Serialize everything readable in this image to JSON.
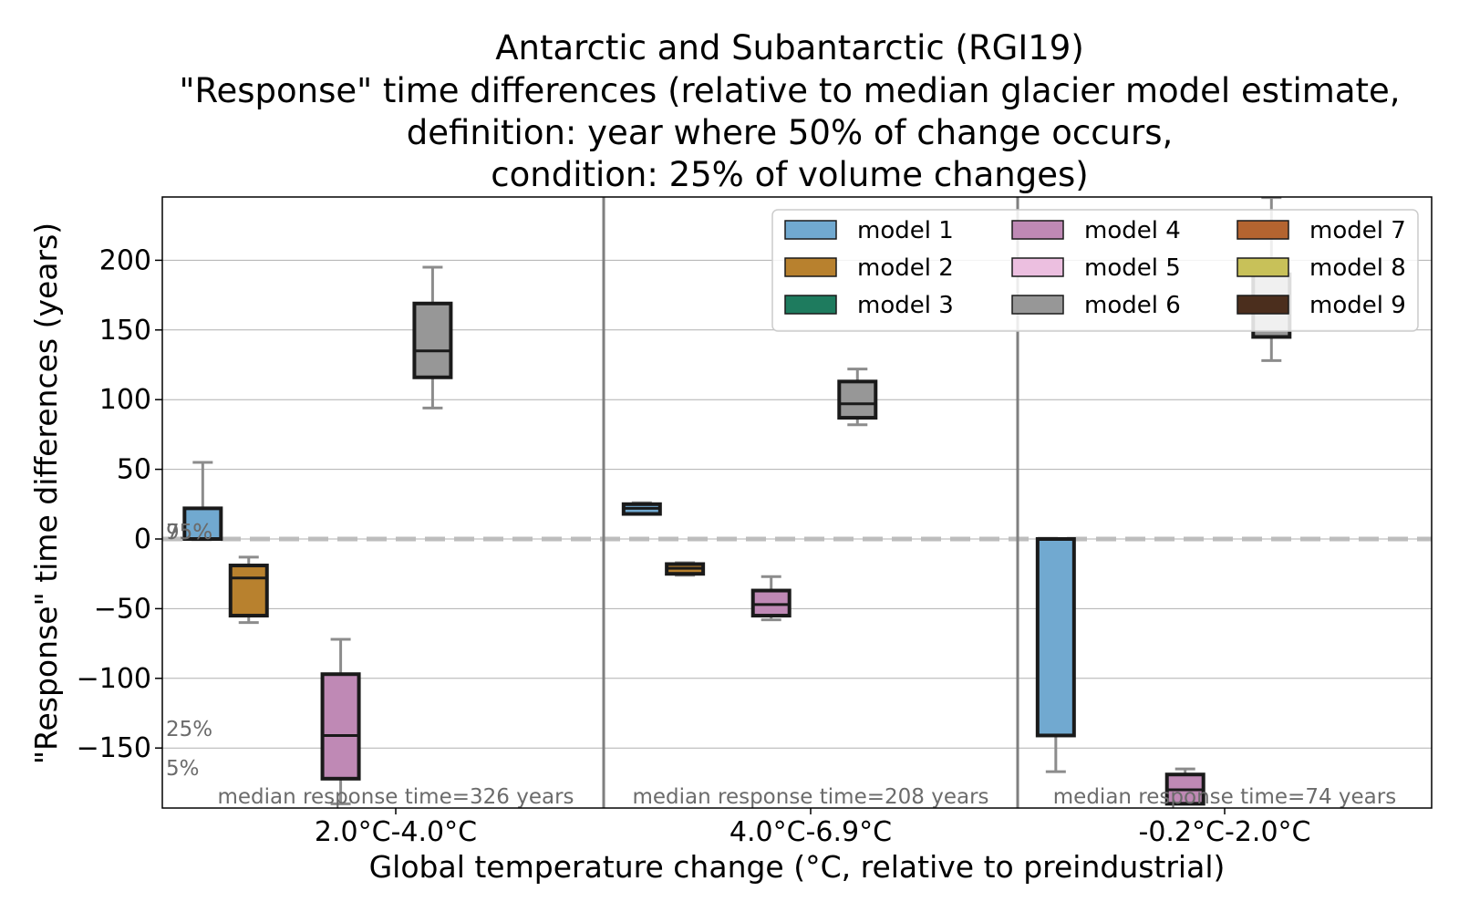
{
  "chart_data": {
    "type": "box",
    "title_lines": [
      "Antarctic and Subantarctic (RGI19)",
      "\"Response\" time differences (relative to median glacier model estimate,",
      "definition: year where 50% of change occurs,",
      "condition: 25% of volume changes)"
    ],
    "xlabel": "Global temperature change (°C, relative to preindustrial)",
    "ylabel": "\"Response\" time differences (years)",
    "ylim": [
      -192,
      245
    ],
    "yticks": [
      200,
      150,
      100,
      50,
      0,
      -50,
      -100,
      -150
    ],
    "ytick_labels": [
      "200",
      "150",
      "100",
      "50",
      "0",
      "−50",
      "−100",
      "−150"
    ],
    "grid": true,
    "legend_position": "top-right",
    "zero_line": "dashed grey",
    "categories": [
      "2.0°C-4.0°C",
      "4.0°C-6.9°C",
      "-0.2°C-2.0°C"
    ],
    "median_notes": [
      "median response time=326 years",
      "median response time=208 years",
      "median response time=74 years"
    ],
    "percentile_annotations": {
      "p95": "95%",
      "p75": "75%",
      "p25": "25%",
      "p5": "5%"
    },
    "series": [
      {
        "name": "model 1",
        "color": "#71a9d0",
        "boxes": [
          {
            "category": 0,
            "whislo": 0,
            "q1": 0,
            "med": 0,
            "q3": 22,
            "whishi": 55
          },
          {
            "category": 1,
            "whislo": 18,
            "q1": 18,
            "med": 22,
            "q3": 25,
            "whishi": 26
          },
          {
            "category": 2,
            "whislo": -167,
            "q1": -141,
            "med": 0,
            "q3": 0,
            "whishi": 0
          }
        ]
      },
      {
        "name": "model 2",
        "color": "#b8812e",
        "boxes": [
          {
            "category": 0,
            "whislo": -60,
            "q1": -55,
            "med": -28,
            "q3": -19,
            "whishi": -13
          },
          {
            "category": 1,
            "whislo": -26,
            "q1": -25,
            "med": -21,
            "q3": -18,
            "whishi": -17
          }
        ]
      },
      {
        "name": "model 3",
        "color": "#1e7b5e",
        "boxes": []
      },
      {
        "name": "model 4",
        "color": "#bf89b5",
        "boxes": [
          {
            "category": 0,
            "whislo": -190,
            "q1": -172,
            "med": -141,
            "q3": -97,
            "whishi": -72
          },
          {
            "category": 1,
            "whislo": -58,
            "q1": -55,
            "med": -47,
            "q3": -37,
            "whishi": -27
          },
          {
            "category": 2,
            "whislo": -190,
            "q1": -190,
            "med": -180,
            "q3": -169,
            "whishi": -165
          }
        ]
      },
      {
        "name": "model 5",
        "color": "#ecbfe0",
        "boxes": []
      },
      {
        "name": "model 6",
        "color": "#979797",
        "boxes": [
          {
            "category": 0,
            "whislo": 94,
            "q1": 116,
            "med": 135,
            "q3": 169,
            "whishi": 195
          },
          {
            "category": 1,
            "whislo": 82,
            "q1": 87,
            "med": 97,
            "q3": 113,
            "whishi": 122
          },
          {
            "category": 2,
            "whislo": 128,
            "q1": 145,
            "med": 165,
            "q3": 190,
            "whishi": 245
          }
        ]
      },
      {
        "name": "model 7",
        "color": "#b46430",
        "boxes": []
      },
      {
        "name": "model 8",
        "color": "#c8c159",
        "boxes": []
      },
      {
        "name": "model 9",
        "color": "#4b2e1d",
        "boxes": []
      }
    ]
  }
}
